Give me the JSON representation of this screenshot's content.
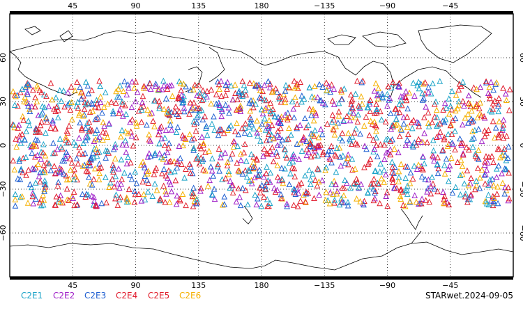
{
  "map": {
    "projection": "equirectangular",
    "central_longitude": 180,
    "lon_range": [
      0,
      360
    ],
    "lat_range": [
      -90,
      90
    ],
    "grid": "dotted",
    "lon_ticks": [
      "45",
      "90",
      "135",
      "180",
      "−135",
      "−90",
      "−45"
    ],
    "lat_ticks": [
      "60",
      "30",
      "0",
      "−30",
      "−60"
    ]
  },
  "observations": {
    "marker": "triangle-open",
    "lat_band": [
      -42,
      44
    ],
    "colors": [
      "#1aa3c8",
      "#a020c8",
      "#1f5fd1",
      "#e01a2c",
      "#e0202c",
      "#f5b000"
    ]
  },
  "legend": [
    {
      "label": "C2E1",
      "color": "#1aa3c8"
    },
    {
      "label": "C2E2",
      "color": "#a020c8"
    },
    {
      "label": "C2E3",
      "color": "#1f5fd1"
    },
    {
      "label": "C2E4",
      "color": "#e01a2c"
    },
    {
      "label": "C2E5",
      "color": "#e0202c"
    },
    {
      "label": "C2E6",
      "color": "#f5b000"
    }
  ],
  "product": "STARwet.2024-09-05"
}
